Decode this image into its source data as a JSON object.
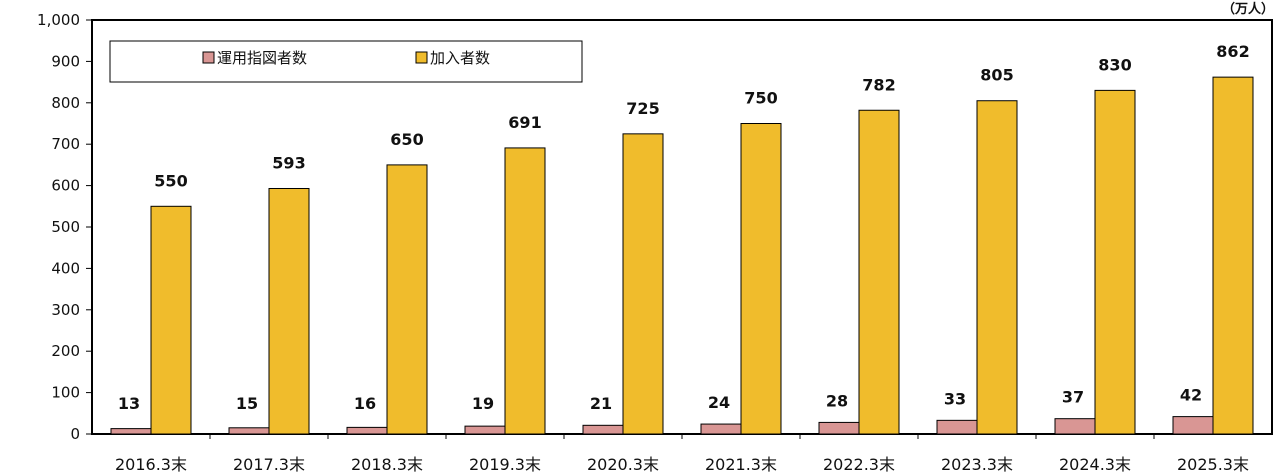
{
  "chart_data": {
    "type": "bar",
    "unit": "（万人）",
    "categories": [
      "2016.3末",
      "2017.3末",
      "2018.3末",
      "2019.3末",
      "2020.3末",
      "2021.3末",
      "2022.3末",
      "2023.3末",
      "2024.3末",
      "2025.3末"
    ],
    "series": [
      {
        "name": "運用指図者数",
        "color": "#d99694",
        "values": [
          13,
          15,
          16,
          19,
          21,
          24,
          28,
          33,
          37,
          42
        ]
      },
      {
        "name": "加入者数",
        "color": "#f0bc2c",
        "values": [
          550,
          593,
          650,
          691,
          725,
          750,
          782,
          805,
          830,
          862
        ]
      }
    ],
    "ylim": [
      0,
      1000
    ],
    "yticks": [
      "0",
      "100",
      "200",
      "300",
      "400",
      "500",
      "600",
      "700",
      "800",
      "900",
      "1,000"
    ],
    "grid": false,
    "legend": "top-left"
  }
}
